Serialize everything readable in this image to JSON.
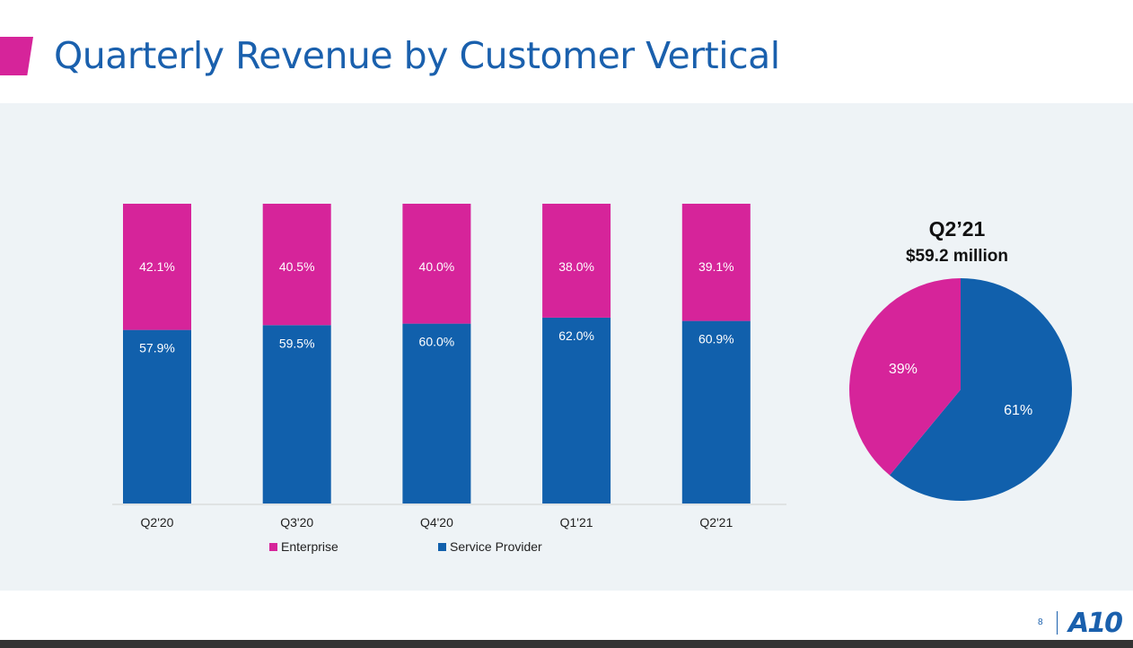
{
  "slide": {
    "title": "Quarterly Revenue by Customer Vertical",
    "page_number": "8",
    "logo_text": "A10"
  },
  "colors": {
    "enterprise": "#d6249a",
    "service_provider": "#1160ac",
    "title": "#1a60ad"
  },
  "chart_data": [
    {
      "type": "bar",
      "stacked": true,
      "categories": [
        "Q2'20",
        "Q3'20",
        "Q4'20",
        "Q1'21",
        "Q2'21"
      ],
      "series": [
        {
          "name": "Service Provider",
          "values": [
            57.9,
            59.5,
            60.0,
            62.0,
            60.9
          ],
          "labels": [
            "57.9%",
            "59.5%",
            "60.0%",
            "62.0%",
            "60.9%"
          ]
        },
        {
          "name": "Enterprise",
          "values": [
            42.1,
            40.5,
            40.0,
            38.0,
            39.1
          ],
          "labels": [
            "42.1%",
            "40.5%",
            "40.0%",
            "38.0%",
            "39.1%"
          ]
        }
      ],
      "ylim": [
        0,
        100
      ],
      "grid": false,
      "legend": [
        "Enterprise",
        "Service Provider"
      ],
      "legend_placement": "bottom"
    },
    {
      "type": "pie",
      "title": "Q2’21",
      "subtitle": "$59.2 million",
      "slices": [
        {
          "name": "Service Provider",
          "value": 61,
          "label": "61%"
        },
        {
          "name": "Enterprise",
          "value": 39,
          "label": "39%"
        }
      ]
    }
  ]
}
